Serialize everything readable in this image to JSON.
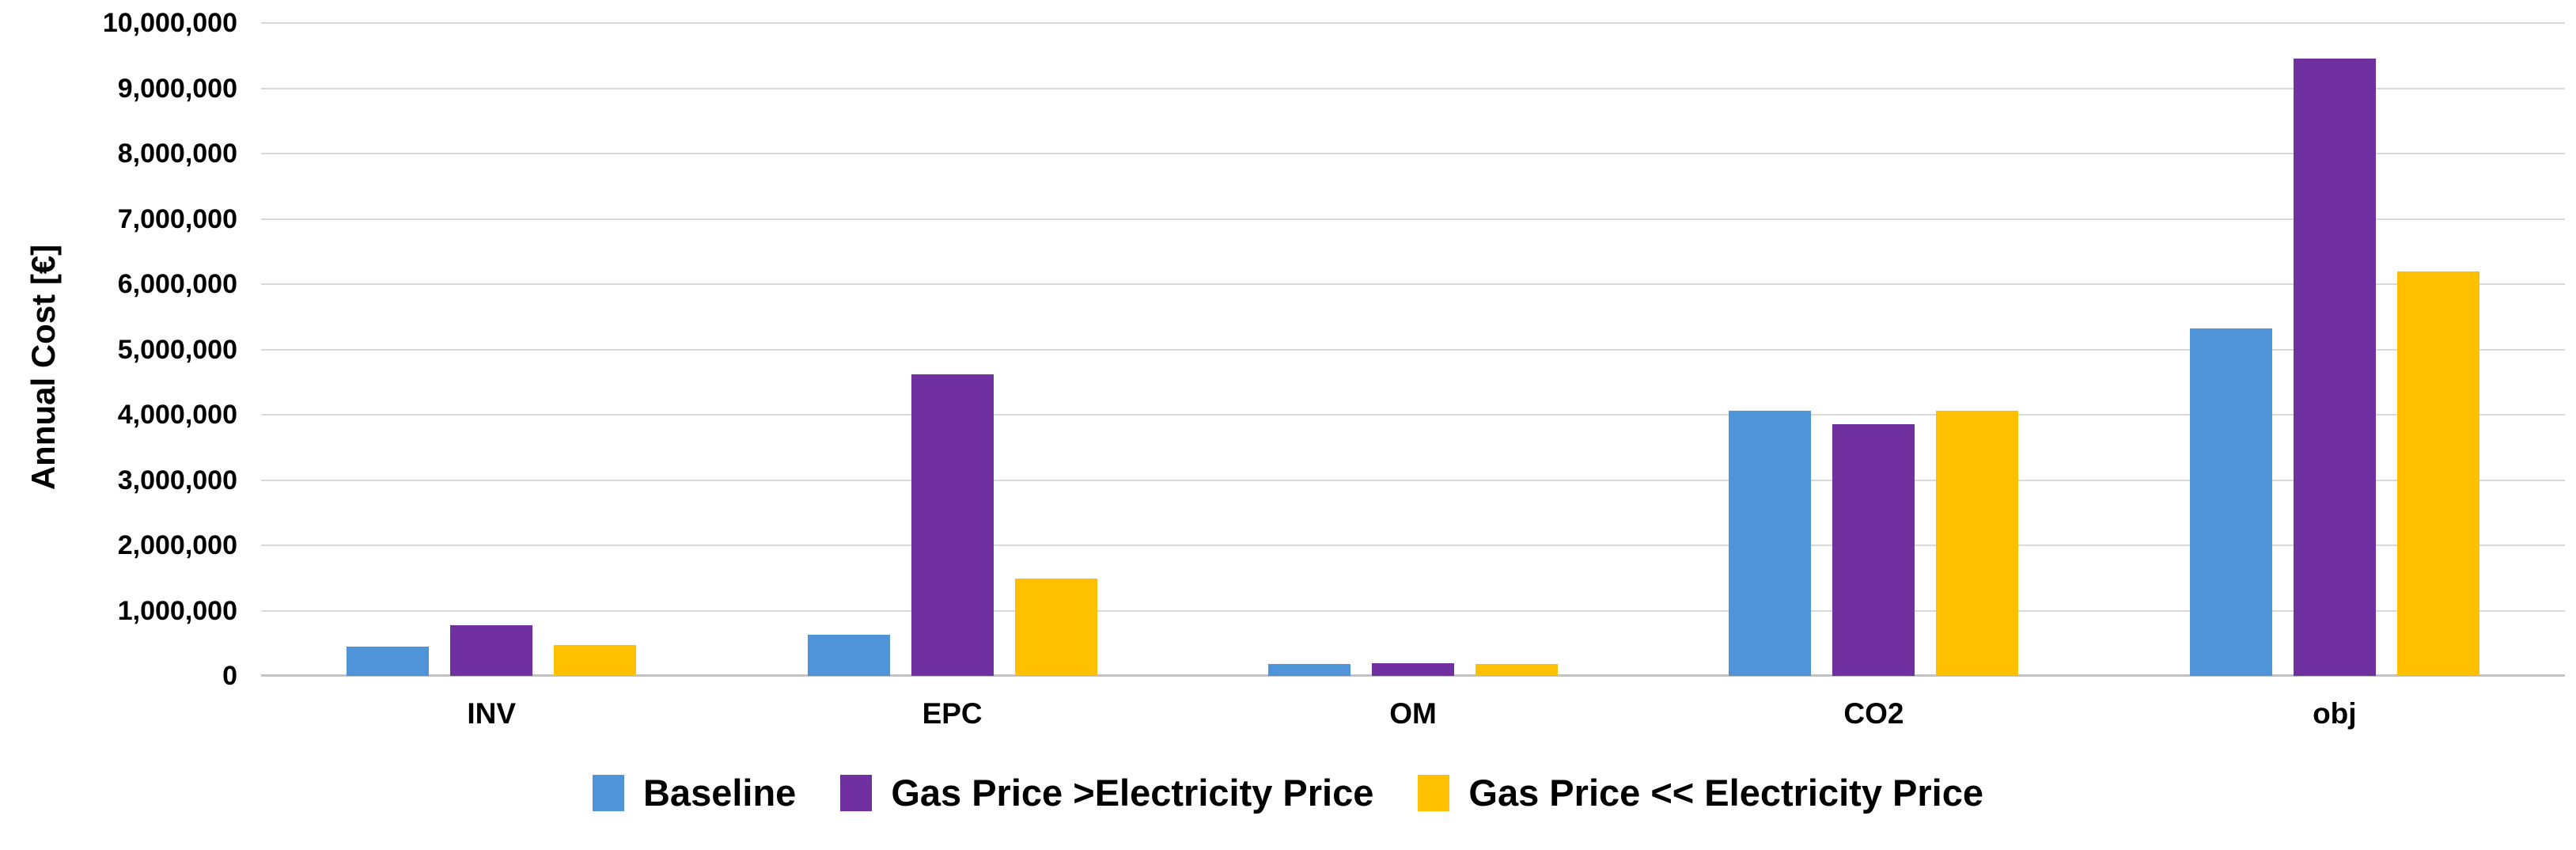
{
  "chart_data": {
    "type": "bar",
    "title": "",
    "xlabel": "",
    "ylabel": "Annual Cost [€]",
    "ylim": [
      0,
      10000000
    ],
    "ytick_interval": 1000000,
    "ytick_labels": [
      "0",
      "1,000,000",
      "2,000,000",
      "3,000,000",
      "4,000,000",
      "5,000,000",
      "6,000,000",
      "7,000,000",
      "8,000,000",
      "9,000,000",
      "10,000,000"
    ],
    "grid": "horizontal",
    "legend_position": "bottom",
    "categories": [
      "INV",
      "EPC",
      "OM",
      "CO2",
      "obj"
    ],
    "series": [
      {
        "name": "Baseline",
        "color": "#4F93D8",
        "values": [
          450000,
          630000,
          180000,
          4060000,
          5320000
        ]
      },
      {
        "name": "Gas Price >Electricity Price",
        "color": "#7030A0",
        "values": [
          780000,
          4620000,
          190000,
          3860000,
          9450000
        ]
      },
      {
        "name": "Gas Price << Electricity Price",
        "color": "#FFC000",
        "values": [
          470000,
          1490000,
          180000,
          4060000,
          6200000
        ]
      }
    ]
  }
}
